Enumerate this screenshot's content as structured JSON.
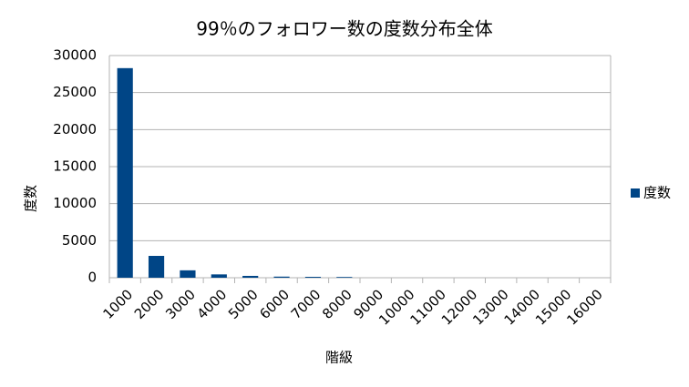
{
  "chart_data": {
    "type": "bar",
    "title": "99％のフォロワー数の度数分布全体",
    "x_label": "階級",
    "y_label": "度数",
    "categories": [
      "1000",
      "2000",
      "3000",
      "4000",
      "5000",
      "6000",
      "7000",
      "8000",
      "9000",
      "10000",
      "11000",
      "12000",
      "13000",
      "14000",
      "15000",
      "16000"
    ],
    "series": [
      {
        "name": "度数",
        "color": "#004586",
        "values": [
          28300,
          2950,
          1000,
          450,
          250,
          150,
          120,
          100,
          0,
          0,
          0,
          0,
          0,
          0,
          0,
          0
        ]
      }
    ],
    "ylim": [
      0,
      30000
    ],
    "yticks": [
      0,
      5000,
      10000,
      15000,
      20000,
      25000,
      30000
    ],
    "grid": true,
    "legend": "right"
  }
}
